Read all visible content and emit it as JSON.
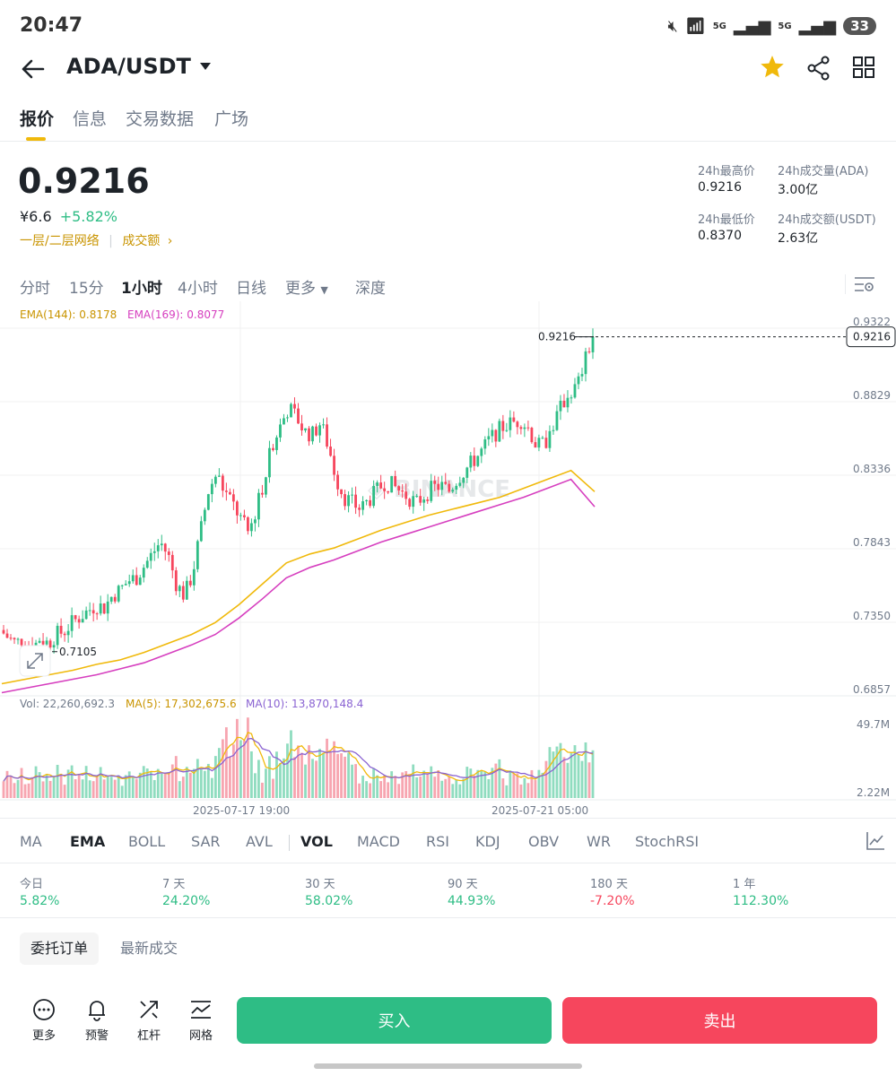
{
  "status_bar": {
    "time": "20:47",
    "signal_1": "5G",
    "signal_2": "5G",
    "battery": "33"
  },
  "header": {
    "pair": "ADA/USDT"
  },
  "tabs": [
    {
      "label": "报价"
    },
    {
      "label": "信息"
    },
    {
      "label": "交易数据"
    },
    {
      "label": "广场"
    }
  ],
  "price": {
    "last": "0.9216",
    "cny": "¥6.6",
    "change": "+5.82%",
    "network_tag": "一层/二层网络",
    "volume_tag": "成交额",
    "chevron": "›"
  },
  "stats": {
    "high_label": "24h最高价",
    "high_value": "0.9216",
    "low_label": "24h最低价",
    "low_value": "0.8370",
    "vol_ada_label": "24h成交量(ADA)",
    "vol_ada_value": "3.00亿",
    "vol_usdt_label": "24h成交额(USDT)",
    "vol_usdt_value": "2.63亿"
  },
  "intervals": [
    {
      "label": "分时"
    },
    {
      "label": "15分"
    },
    {
      "label": "1小时"
    },
    {
      "label": "4小时"
    },
    {
      "label": "日线"
    },
    {
      "label": "更多"
    },
    {
      "label": "深度"
    }
  ],
  "indicators_top": {
    "ema144": "EMA(144): 0.8178",
    "ema169": "EMA(169): 0.8077"
  },
  "volume_indicators": {
    "vol": "Vol: 22,260,692.3",
    "ma5": "MA(5): 17,302,675.6",
    "ma10": "MA(10): 13,870,148.4"
  },
  "chart_data": {
    "type": "candlestick",
    "y_ticks": [
      "0.9322",
      "0.8829",
      "0.8336",
      "0.7843",
      "0.7350",
      "0.6857"
    ],
    "volume_ticks": [
      "49.7M",
      "2.22M"
    ],
    "x_ticks": [
      "2025-07-17 19:00",
      "2025-07-21 05:00"
    ],
    "current_price_label": "0.9216",
    "last_price_marker": "0.9216",
    "low_marker": "0.7105",
    "ylim": [
      0.6857,
      0.9322
    ],
    "price_path": [
      0.725,
      0.72,
      0.716,
      0.72,
      0.712,
      0.72,
      0.716,
      0.722,
      0.724,
      0.73,
      0.734,
      0.738,
      0.742,
      0.74,
      0.748,
      0.752,
      0.758,
      0.76,
      0.768,
      0.776,
      0.784,
      0.775,
      0.756,
      0.748,
      0.762,
      0.79,
      0.818,
      0.83,
      0.818,
      0.81,
      0.8,
      0.79,
      0.806,
      0.826,
      0.85,
      0.862,
      0.874,
      0.868,
      0.858,
      0.856,
      0.864,
      0.848,
      0.826,
      0.814,
      0.81,
      0.806,
      0.812,
      0.818,
      0.824,
      0.822,
      0.818,
      0.814,
      0.81,
      0.816,
      0.82,
      0.822,
      0.818,
      0.826,
      0.832,
      0.838,
      0.844,
      0.852,
      0.858,
      0.862,
      0.864,
      0.866,
      0.86,
      0.848,
      0.85,
      0.862,
      0.874,
      0.884,
      0.888,
      0.905,
      0.9216
    ],
    "ema144_path": [
      0.689,
      0.692,
      0.695,
      0.698,
      0.702,
      0.705,
      0.71,
      0.716,
      0.722,
      0.73,
      0.742,
      0.756,
      0.77,
      0.776,
      0.78,
      0.786,
      0.792,
      0.797,
      0.802,
      0.806,
      0.81,
      0.814,
      0.82,
      0.826,
      0.832,
      0.8178
    ],
    "ema169_path": [
      0.683,
      0.686,
      0.689,
      0.692,
      0.695,
      0.699,
      0.703,
      0.709,
      0.715,
      0.722,
      0.733,
      0.746,
      0.76,
      0.767,
      0.772,
      0.778,
      0.784,
      0.789,
      0.794,
      0.799,
      0.804,
      0.809,
      0.814,
      0.82,
      0.826,
      0.8077
    ]
  },
  "indicator_tabs": [
    {
      "label": "MA"
    },
    {
      "label": "EMA"
    },
    {
      "label": "BOLL"
    },
    {
      "label": "SAR"
    },
    {
      "label": "AVL"
    },
    {
      "label": "VOL"
    },
    {
      "label": "MACD"
    },
    {
      "label": "RSI"
    },
    {
      "label": "KDJ"
    },
    {
      "label": "OBV"
    },
    {
      "label": "WR"
    },
    {
      "label": "StochRSI"
    }
  ],
  "performance": [
    {
      "label": "今日",
      "value": "5.82%"
    },
    {
      "label": "7 天",
      "value": "24.20%"
    },
    {
      "label": "30 天",
      "value": "58.02%"
    },
    {
      "label": "90 天",
      "value": "44.93%"
    },
    {
      "label": "180 天",
      "value": "-7.20%"
    },
    {
      "label": "1 年",
      "value": "112.30%"
    }
  ],
  "orders_tabs": {
    "orders": "委托订单",
    "trades": "最新成交"
  },
  "bottom_bar": {
    "more": "更多",
    "alert": "预警",
    "leverage": "杠杆",
    "grid": "网格",
    "buy": "买入",
    "sell": "卖出"
  },
  "colors": {
    "up": "#2ebd85",
    "down": "#f6465d",
    "ema144": "#f0b90b",
    "ema169": "#d63fbf",
    "accent": "#f0b90b"
  }
}
